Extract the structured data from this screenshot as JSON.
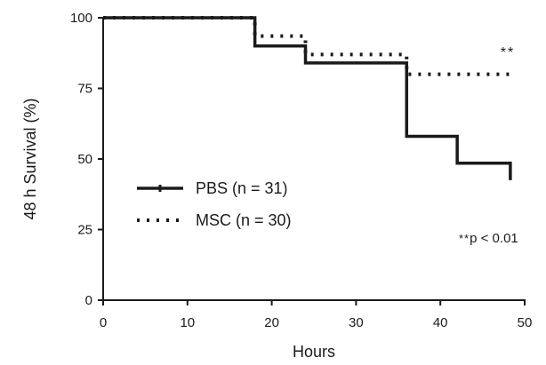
{
  "chart_data": {
    "type": "line",
    "title": "",
    "xlabel": "Hours",
    "ylabel": "48 h Survival (%)",
    "xlim": [
      0,
      50
    ],
    "ylim": [
      0,
      100
    ],
    "xticks": [
      0,
      10,
      20,
      30,
      40,
      50
    ],
    "yticks": [
      0,
      25,
      50,
      75,
      100
    ],
    "xtick_labels": [
      "0",
      "10",
      "20",
      "30",
      "40",
      "50"
    ],
    "ytick_labels": [
      "0",
      "25",
      "50",
      "75",
      "100"
    ],
    "grid": false,
    "legend_position": "center-left",
    "step": true,
    "series": [
      {
        "name": "PBS (n = 31)",
        "line_style": "solid",
        "color": "#1a1a1a",
        "x": [
          0,
          18,
          24,
          36,
          42,
          48.3
        ],
        "y": [
          100,
          90,
          84,
          58,
          48.5,
          42.5
        ]
      },
      {
        "name": "MSC (n = 30)",
        "line_style": "dotted",
        "color": "#1a1a1a",
        "x": [
          0,
          18,
          24,
          36,
          48.3
        ],
        "y": [
          100,
          93.5,
          87,
          80,
          80
        ]
      }
    ],
    "annotations": {
      "significance_marker": "**",
      "pvalue_stars": "**",
      "pvalue_text": "p < 0.01"
    }
  }
}
